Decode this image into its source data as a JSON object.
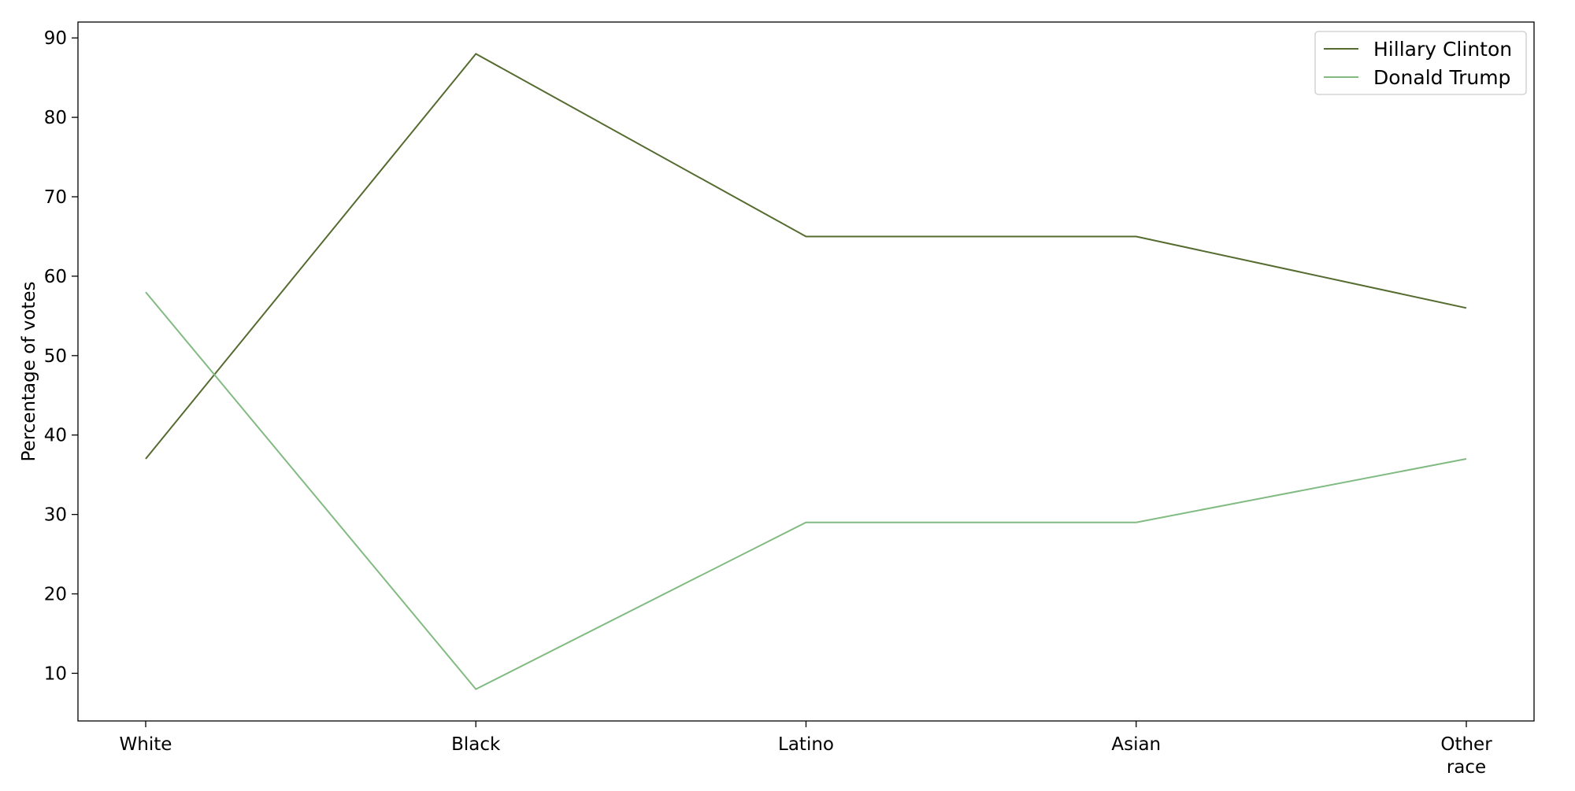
{
  "chart_data": {
    "type": "line",
    "title": "",
    "xlabel": "",
    "ylabel": "Percentage of votes",
    "categories": [
      "White",
      "Black",
      "Latino",
      "Asian",
      "Other race"
    ],
    "category_lines": [
      [
        "White"
      ],
      [
        "Black"
      ],
      [
        "Latino"
      ],
      [
        "Asian"
      ],
      [
        "Other",
        "race"
      ]
    ],
    "yticks": [
      10,
      20,
      30,
      40,
      50,
      60,
      70,
      80,
      90
    ],
    "ylim": [
      4,
      92
    ],
    "grid": false,
    "legend": {
      "position": "top-right"
    },
    "series": [
      {
        "name": "Hillary Clinton",
        "values": [
          37,
          88,
          65,
          65,
          56
        ],
        "color": "#556b2f"
      },
      {
        "name": "Donald Trump",
        "values": [
          58,
          8,
          29,
          29,
          37
        ],
        "color": "#82bb82"
      }
    ]
  }
}
